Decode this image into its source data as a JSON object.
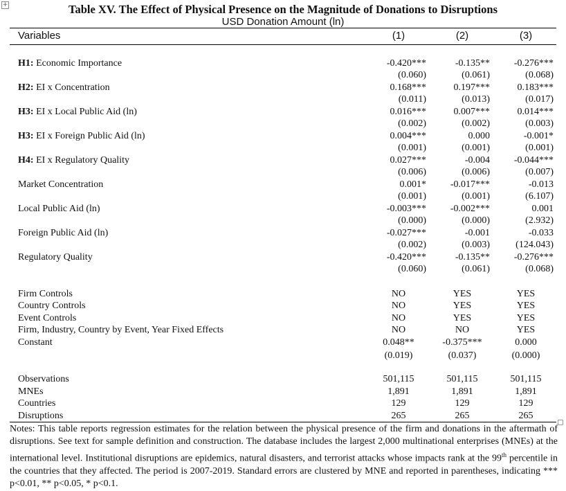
{
  "title": "Table XV. The Effect of Physical Presence on the Magnitude of Donations to Disruptions",
  "subtitle": "USD Donation Amount (ln)",
  "header": {
    "variables": "Variables",
    "cols": [
      "(1)",
      "(2)",
      "(3)"
    ]
  },
  "coef_rows": [
    {
      "prefix": "H1:",
      "label": " Economic Importance",
      "coef": [
        "-0.420***",
        "-0.135**",
        "-0.276***"
      ],
      "se": [
        "(0.060)",
        "(0.061)",
        "(0.068)"
      ]
    },
    {
      "prefix": "H2:",
      "label": " EI x Concentration",
      "coef": [
        "0.168***",
        "0.197***",
        "0.183***"
      ],
      "se": [
        "(0.011)",
        "(0.013)",
        "(0.017)"
      ]
    },
    {
      "prefix": "H3:",
      "label": " EI x Local Public Aid (ln)",
      "coef": [
        "0.016***",
        "0.007***",
        "0.014***"
      ],
      "se": [
        "(0.002)",
        "(0.002)",
        "(0.003)"
      ]
    },
    {
      "prefix": "H3:",
      "label": " EI x Foreign Public Aid (ln)",
      "coef": [
        "0.004***",
        "0.000",
        "-0.001*"
      ],
      "se": [
        "(0.001)",
        "(0.001)",
        "(0.001)"
      ]
    },
    {
      "prefix": "H4:",
      "label": " EI x Regulatory Quality",
      "coef": [
        "0.027***",
        "-0.004",
        "-0.044***"
      ],
      "se": [
        "(0.006)",
        "(0.006)",
        "(0.007)"
      ]
    },
    {
      "prefix": "",
      "label": "Market Concentration",
      "coef": [
        "0.001*",
        "-0.017***",
        "-0.013"
      ],
      "se": [
        "(0.001)",
        "(0.001)",
        "(6.107)"
      ]
    },
    {
      "prefix": "",
      "label": "Local Public Aid (ln)",
      "coef": [
        "-0.003***",
        "-0.002***",
        "0.001"
      ],
      "se": [
        "(0.000)",
        "(0.000)",
        "(2.932)"
      ]
    },
    {
      "prefix": "",
      "label": "Foreign Public Aid (ln)",
      "coef": [
        "-0.027***",
        "-0.001",
        "-0.033"
      ],
      "se": [
        "(0.002)",
        "(0.003)",
        "(124.043)"
      ]
    },
    {
      "prefix": "",
      "label": "Regulatory Quality",
      "coef": [
        "-0.420***",
        "-0.135**",
        "-0.276***"
      ],
      "se": [
        "(0.060)",
        "(0.061)",
        "(0.068)"
      ]
    }
  ],
  "control_rows": [
    {
      "label": "Firm Controls",
      "vals": [
        "NO",
        "YES",
        "YES"
      ]
    },
    {
      "label": "Country Controls",
      "vals": [
        "NO",
        "YES",
        "YES"
      ]
    },
    {
      "label": "Event Controls",
      "vals": [
        "NO",
        "YES",
        "YES"
      ]
    },
    {
      "label": "Firm, Industry, Country by Event, Year Fixed Effects",
      "vals": [
        "NO",
        "NO",
        "YES"
      ]
    },
    {
      "label": "Constant",
      "vals": [
        "0.048**",
        "-0.375***",
        "0.000"
      ]
    },
    {
      "label": "",
      "vals": [
        "(0.019)",
        "(0.037)",
        "(0.000)"
      ]
    }
  ],
  "stat_rows": [
    {
      "label": "Observations",
      "vals": [
        "501,115",
        "501,115",
        "501,115"
      ]
    },
    {
      "label": "MNEs",
      "vals": [
        "1,891",
        "1,891",
        "1,891"
      ]
    },
    {
      "label": "Countries",
      "vals": [
        "129",
        "129",
        "129"
      ]
    },
    {
      "label": "Disruptions",
      "vals": [
        "265",
        "265",
        "265"
      ]
    }
  ],
  "notes": {
    "part1": "Notes: This table reports regression estimates for the relation between the physical presence of the firm and donations in the aftermath of disruptions. See text for sample definition and construction. The database includes the largest 2,000 multinational enterprises (MNEs) at the international level. Institutional disruptions are epidemics, natural disasters, and terrorist attacks whose impacts rank at the 99",
    "sup": "th",
    "part2": " percentile in the countries that they affected. The period is 2007-2019. Standard errors are clustered by MNE and reported in parentheses, indicating *** p<0.01, ** p<0.05, * p<0.1."
  },
  "icons": {
    "expander": "plus-box-icon",
    "resize": "resize-handle-icon"
  }
}
